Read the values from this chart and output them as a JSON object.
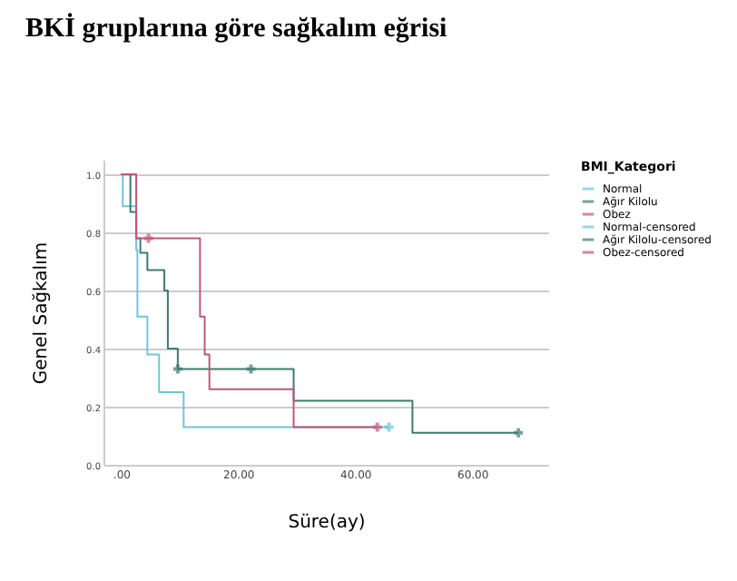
{
  "chart_data": {
    "type": "step",
    "title": "BKİ gruplarına göre sağkalım eğrisi",
    "xlabel": "Süre(ay)",
    "ylabel": "Genel Sağkalım",
    "legend_title": "BMI_Kategori",
    "series": [
      {
        "name": "Normal",
        "color": "#6fc6d8",
        "x": [
          0,
          0.3,
          2.6,
          2.8,
          4.5,
          6.5,
          10.7,
          45.8
        ],
        "values": [
          1,
          0.89,
          0.74,
          0.51,
          0.38,
          0.25,
          0.13,
          0.13
        ]
      },
      {
        "name": "Ağır Kilolu",
        "color": "#3f7b72",
        "x": [
          0,
          1.6,
          2.6,
          3.3,
          4.5,
          7.4,
          8,
          9.7,
          29.5,
          49.8,
          67.9
        ],
        "values": [
          1,
          0.87,
          0.78,
          0.73,
          0.67,
          0.6,
          0.4,
          0.33,
          0.22,
          0.11,
          0.11
        ]
      },
      {
        "name": "Obez",
        "color": "#c0577a",
        "x": [
          0,
          2.6,
          13.5,
          14.3,
          15.1,
          29.5,
          43.8
        ],
        "values": [
          1,
          0.78,
          0.51,
          0.38,
          0.26,
          0.13,
          0.13
        ]
      },
      {
        "name": "Normal-censored",
        "type": "scatter",
        "marker": "cross",
        "color": "#6fc6d8",
        "x": [
          45.8
        ],
        "values": [
          0.13
        ]
      },
      {
        "name": "Ağır Kilolu-censored",
        "type": "scatter",
        "marker": "cross",
        "color": "#3f7b72",
        "x": [
          9.7,
          22.2,
          67.9
        ],
        "values": [
          0.33,
          0.33,
          0.11
        ]
      },
      {
        "name": "Obez-censored",
        "type": "scatter",
        "marker": "cross",
        "color": "#c0577a",
        "x": [
          4.7,
          43.8
        ],
        "values": [
          0.78,
          0.13
        ]
      }
    ],
    "xlim": [
      -3,
      73
    ],
    "xticks": [
      {
        "value": 0,
        "label": ".00"
      },
      {
        "value": 20,
        "label": "20.00"
      },
      {
        "value": 40,
        "label": "40.00"
      },
      {
        "value": 60,
        "label": "60.00"
      }
    ],
    "ylim": [
      0,
      1.05
    ],
    "yticks": [
      {
        "value": 0,
        "label": "0.0"
      },
      0.2,
      0.4,
      0.6,
      0.8,
      {
        "value": 1,
        "label": "1.0"
      }
    ],
    "grid": "y",
    "legend": "right"
  }
}
